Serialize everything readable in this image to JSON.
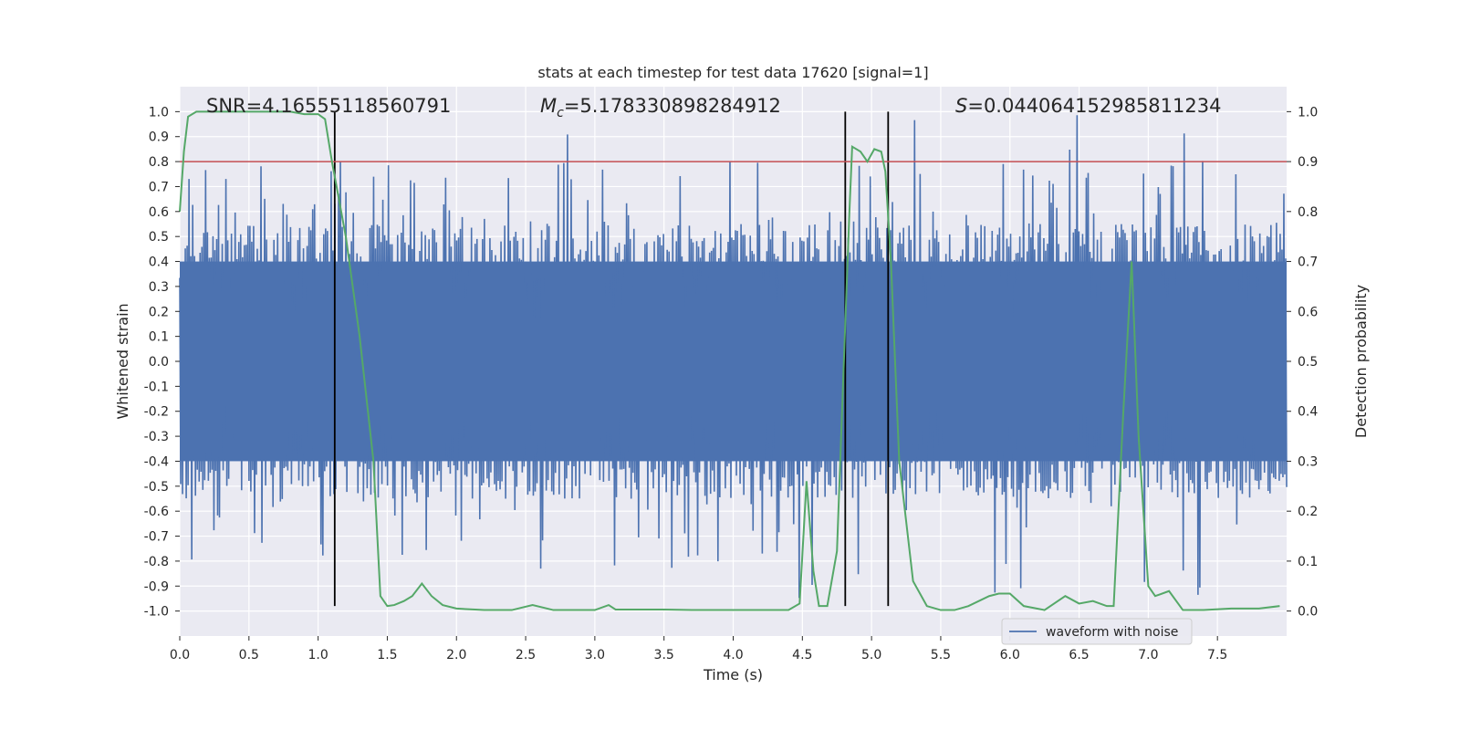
{
  "chart_data": {
    "type": "line",
    "title": "stats at each timestep for test data 17620 [signal=1]",
    "xlabel": "Time (s)",
    "ylabel_left": "Whitened strain",
    "ylabel_right": "Detection probability",
    "xlim": [
      0,
      8.0
    ],
    "ylim_left": [
      -1.1,
      1.1
    ],
    "ylim_right": [
      -0.05,
      1.05
    ],
    "x_ticks": [
      "0.0",
      "0.5",
      "1.0",
      "1.5",
      "2.0",
      "2.5",
      "3.0",
      "3.5",
      "4.0",
      "4.5",
      "5.0",
      "5.5",
      "6.0",
      "6.5",
      "7.0",
      "7.5"
    ],
    "x_tick_values": [
      0,
      0.5,
      1.0,
      1.5,
      2.0,
      2.5,
      3.0,
      3.5,
      4.0,
      4.5,
      5.0,
      5.5,
      6.0,
      6.5,
      7.0,
      7.5
    ],
    "y_left_ticks": [
      "1.0",
      "0.9",
      "0.8",
      "0.7",
      "0.6",
      "0.5",
      "0.4",
      "0.3",
      "0.2",
      "0.1",
      "0.0",
      "-0.1",
      "-0.2",
      "-0.3",
      "-0.4",
      "-0.5",
      "-0.6",
      "-0.7",
      "-0.8",
      "-0.9",
      "-1.0"
    ],
    "y_left_tick_values": [
      1.0,
      0.9,
      0.8,
      0.7,
      0.6,
      0.5,
      0.4,
      0.3,
      0.2,
      0.1,
      0.0,
      -0.1,
      -0.2,
      -0.3,
      -0.4,
      -0.5,
      -0.6,
      -0.7,
      -0.8,
      -0.9,
      -1.0
    ],
    "y_right_ticks": [
      "1.0",
      "0.9",
      "0.8",
      "0.7",
      "0.6",
      "0.5",
      "0.4",
      "0.3",
      "0.2",
      "0.1",
      "0.0"
    ],
    "y_right_tick_values": [
      1.0,
      0.9,
      0.8,
      0.7,
      0.6,
      0.5,
      0.4,
      0.3,
      0.2,
      0.1,
      0.0
    ],
    "annotations": {
      "snr": "SNR=4.16555118560791",
      "mc_symbol": "M",
      "mc_sub": "c",
      "mc_value": "=5.178330898284912",
      "s_symbol": "S",
      "s_value": "=0.044064152985811234"
    },
    "threshold": {
      "value": 0.9,
      "axis": "right",
      "color": "#c44e52"
    },
    "vertical_lines": [
      1.12,
      4.81,
      5.12
    ],
    "waveform": {
      "name": "waveform with noise",
      "color": "#4c72b0",
      "n_samples": 1200,
      "seed": 17620,
      "core_amplitude": 0.4,
      "spike_max": 1.0,
      "spike_min": -0.98
    },
    "probability": {
      "color": "#55a868",
      "x": [
        0.0,
        0.03,
        0.06,
        0.12,
        0.3,
        0.5,
        0.8,
        0.9,
        1.0,
        1.05,
        1.1,
        1.2,
        1.3,
        1.4,
        1.45,
        1.5,
        1.55,
        1.62,
        1.68,
        1.75,
        1.82,
        1.9,
        2.0,
        2.2,
        2.4,
        2.55,
        2.7,
        2.85,
        3.0,
        3.1,
        3.15,
        3.3,
        3.5,
        3.7,
        3.85,
        4.0,
        4.2,
        4.4,
        4.48,
        4.53,
        4.58,
        4.62,
        4.68,
        4.75,
        4.8,
        4.84,
        4.86,
        4.92,
        4.97,
        5.02,
        5.07,
        5.1,
        5.14,
        5.2,
        5.3,
        5.4,
        5.5,
        5.6,
        5.7,
        5.85,
        5.92,
        6.0,
        6.1,
        6.25,
        6.4,
        6.5,
        6.6,
        6.7,
        6.75,
        6.82,
        6.88,
        6.93,
        7.0,
        7.05,
        7.15,
        7.25,
        7.4,
        7.6,
        7.8,
        7.95
      ],
      "y": [
        0.8,
        0.92,
        0.99,
        1.0,
        1.0,
        1.0,
        1.0,
        0.995,
        0.995,
        0.985,
        0.9,
        0.75,
        0.55,
        0.3,
        0.03,
        0.01,
        0.012,
        0.02,
        0.03,
        0.055,
        0.03,
        0.012,
        0.005,
        0.002,
        0.002,
        0.012,
        0.002,
        0.002,
        0.002,
        0.012,
        0.003,
        0.003,
        0.003,
        0.002,
        0.002,
        0.002,
        0.002,
        0.002,
        0.015,
        0.26,
        0.08,
        0.01,
        0.01,
        0.12,
        0.5,
        0.8,
        0.93,
        0.92,
        0.9,
        0.925,
        0.92,
        0.88,
        0.7,
        0.3,
        0.06,
        0.01,
        0.002,
        0.002,
        0.01,
        0.03,
        0.035,
        0.035,
        0.01,
        0.002,
        0.03,
        0.015,
        0.02,
        0.01,
        0.01,
        0.4,
        0.7,
        0.35,
        0.05,
        0.03,
        0.04,
        0.002,
        0.002,
        0.005,
        0.005,
        0.01
      ]
    },
    "legend": {
      "label": "waveform with noise",
      "placement": "lower-right"
    }
  }
}
